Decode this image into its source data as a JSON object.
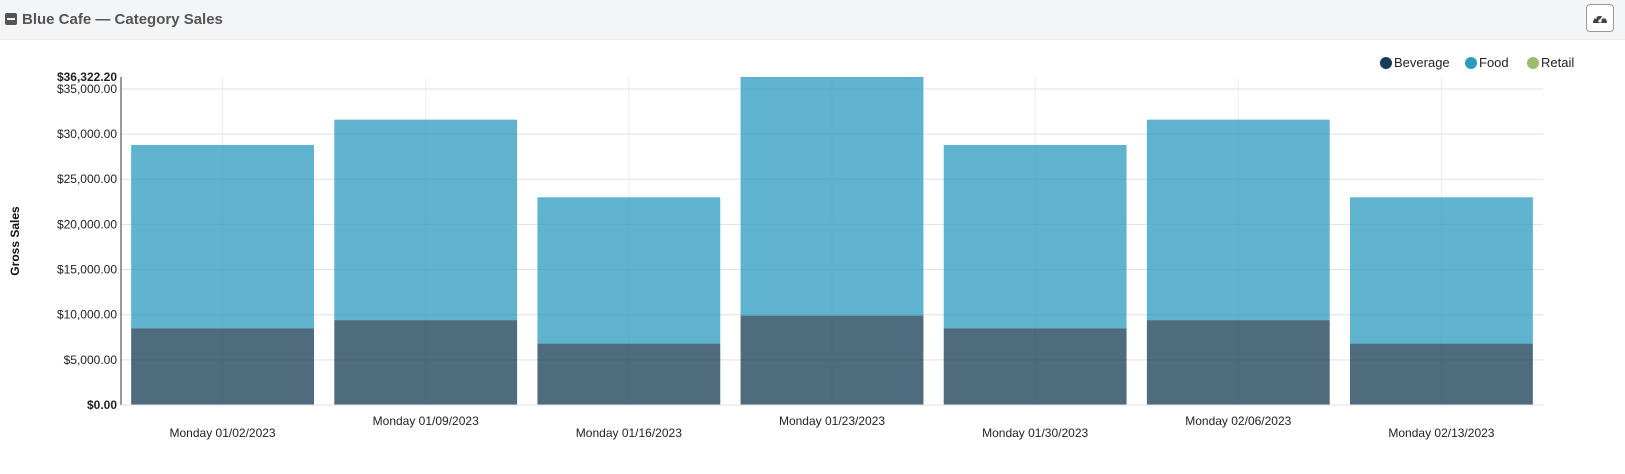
{
  "panel": {
    "title": "Blue Cafe — Category Sales",
    "collapse_icon": "minus-square-icon",
    "dashboard_icon": "speedometer-icon"
  },
  "chart_data": {
    "type": "bar",
    "stacked": true,
    "categories": [
      "Monday 01/02/2023",
      "Monday 01/09/2023",
      "Monday 01/16/2023",
      "Monday 01/23/2023",
      "Monday 01/30/2023",
      "Monday 02/06/2023",
      "Monday 02/13/2023"
    ],
    "series": [
      {
        "name": "Beverage",
        "color": "#183d56",
        "values": [
          8500,
          9400,
          6800,
          9900,
          8500,
          9400,
          6800
        ]
      },
      {
        "name": "Food",
        "color": "#2d9bc0",
        "values": [
          20300,
          22200,
          16200,
          26422.2,
          20300,
          22200,
          16200
        ]
      },
      {
        "name": "Retail",
        "color": "#9bbd6b",
        "values": [
          0,
          0,
          0,
          0,
          0,
          0,
          0
        ]
      }
    ],
    "ylabel": "Gross Sales",
    "xlabel": "",
    "ylim": [
      0,
      36322.2
    ],
    "yticks": [
      0,
      5000,
      10000,
      15000,
      20000,
      25000,
      30000,
      35000
    ],
    "ytick_labels": [
      "$0.00",
      "$5,000.00",
      "$10,000.00",
      "$15,000.00",
      "$20,000.00",
      "$25,000.00",
      "$30,000.00",
      "$35,000.00"
    ],
    "ymax_label": "$36,322.20",
    "grid": true,
    "legend_position": "top-right"
  }
}
